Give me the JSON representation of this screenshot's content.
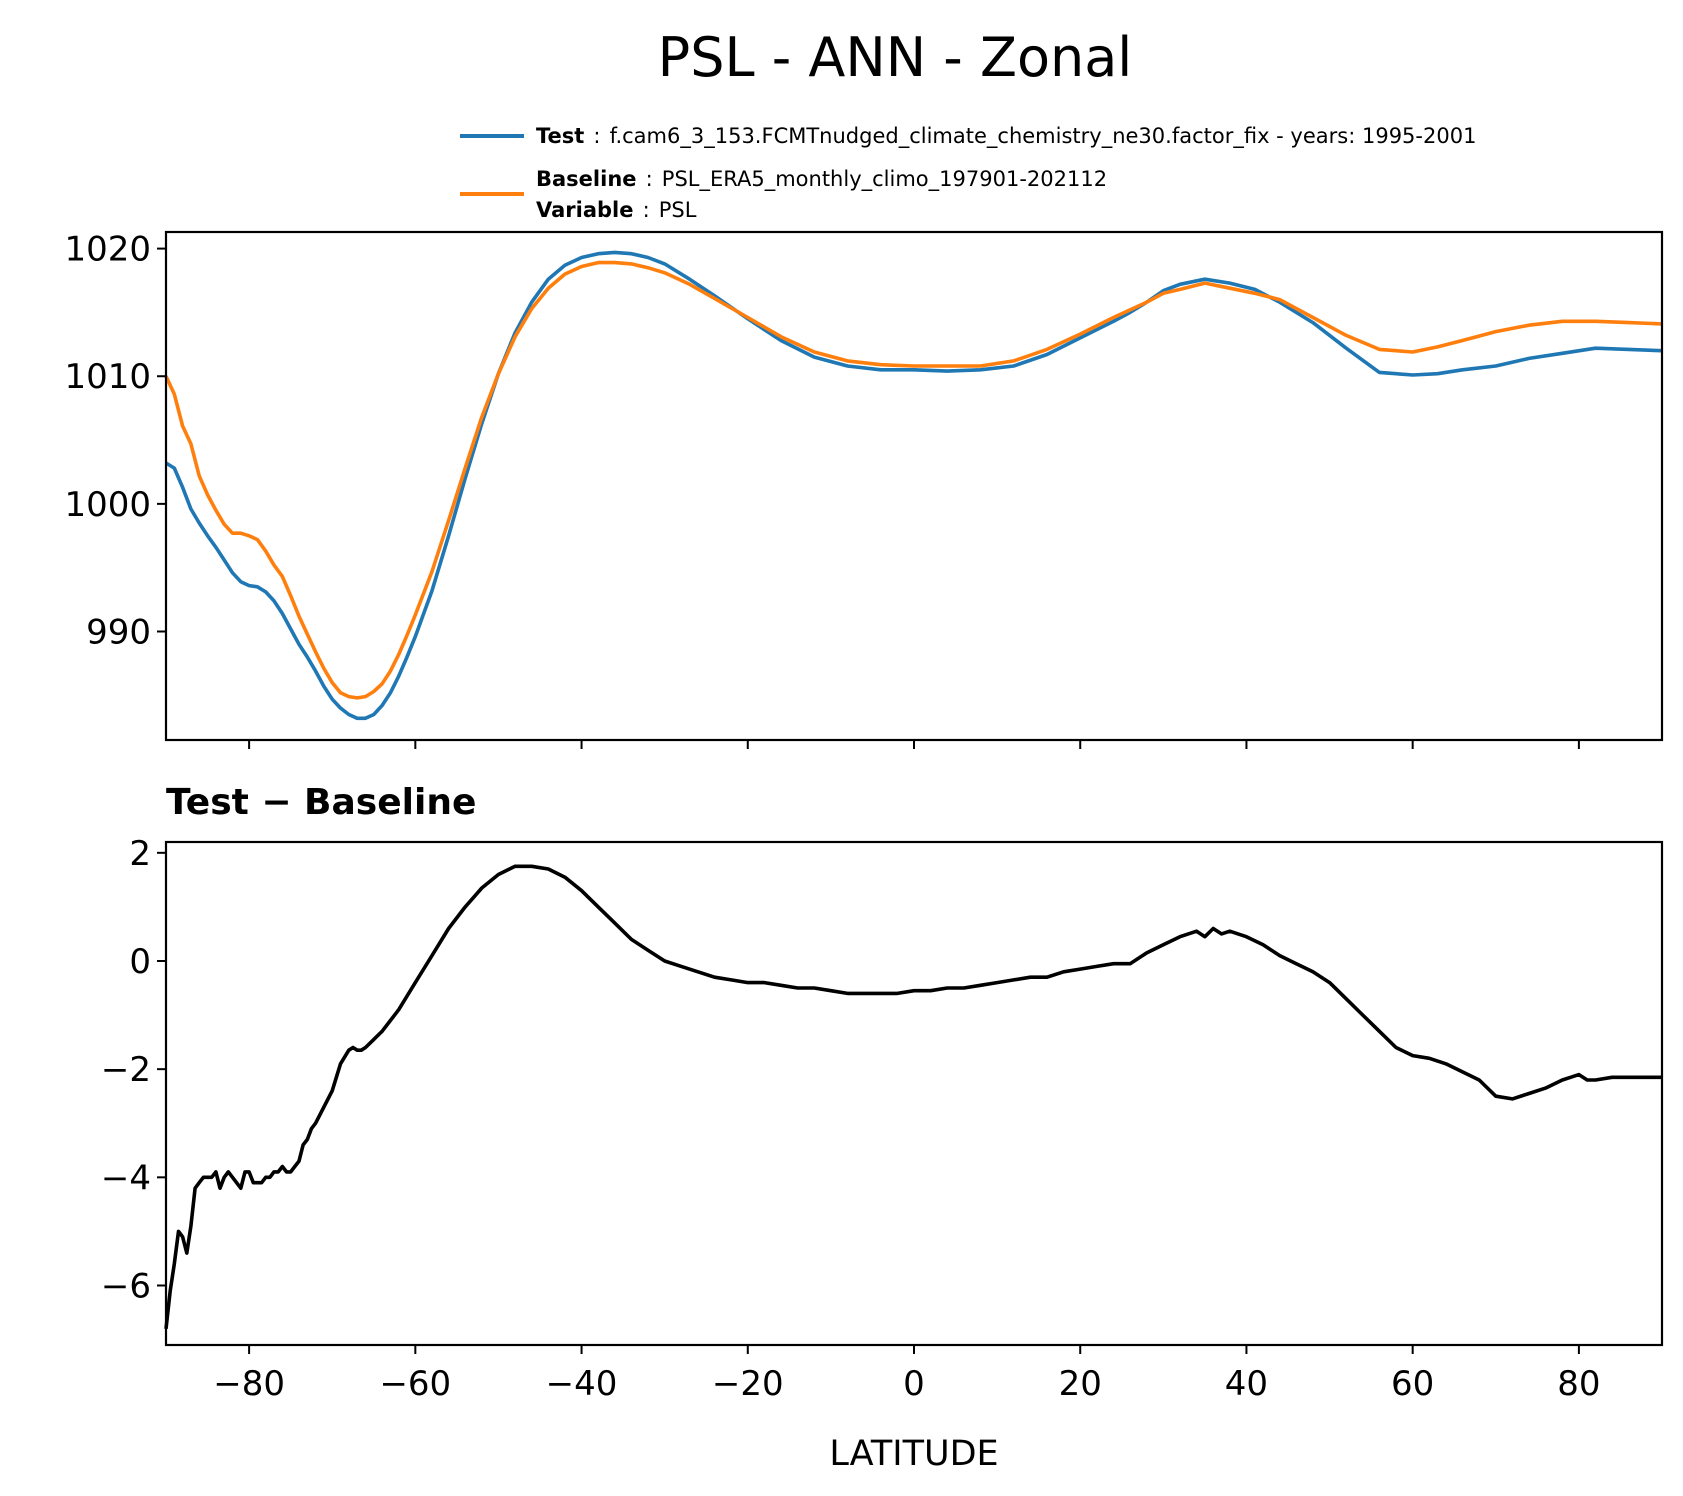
{
  "colors": {
    "test": "#1f77b4",
    "baseline": "#ff7f0e",
    "diff": "#000000",
    "axis": "#000000"
  },
  "chart_data": [
    {
      "type": "line",
      "title": "PSL - ANN - Zonal",
      "xlabel": "",
      "ylabel": "",
      "xlim": [
        -90,
        90
      ],
      "ylim": [
        981.5,
        1021.3
      ],
      "yticks": [
        990,
        1000,
        1010,
        1020
      ],
      "yticklabels": [
        "990",
        "1000",
        "1010",
        "1020"
      ],
      "xticks": [
        -80,
        -60,
        -40,
        -20,
        0,
        20,
        40,
        60,
        80
      ],
      "legend": {
        "placement": "top-right, above axes",
        "entries": [
          {
            "series": "Test",
            "lines": [
              {
                "key": "Test",
                "sep": ":",
                "value": "f.cam6_3_153.FCMTnudged_climate_chemistry_ne30.factor_fix - years: 1995-2001"
              }
            ]
          },
          {
            "series": "Baseline",
            "lines": [
              {
                "key": "Baseline",
                "sep": ":",
                "value": "PSL_ERA5_monthly_climo_197901-202112"
              },
              {
                "key": "Variable",
                "sep": ":",
                "value": "PSL"
              }
            ]
          }
        ]
      },
      "series": [
        {
          "name": "Test",
          "color": "#1f77b4",
          "x": [
            -90,
            -89,
            -88,
            -87,
            -86,
            -85,
            -84,
            -83,
            -82,
            -81,
            -80,
            -79,
            -78,
            -77,
            -76,
            -75,
            -74,
            -73,
            -72,
            -71,
            -70,
            -69,
            -68,
            -67,
            -66,
            -65,
            -64,
            -63,
            -62,
            -61,
            -60,
            -58,
            -56,
            -54,
            -52,
            -50,
            -48,
            -46,
            -44,
            -42,
            -40,
            -38,
            -36,
            -34,
            -32,
            -30,
            -27,
            -24,
            -20,
            -16,
            -12,
            -8,
            -4,
            0,
            4,
            8,
            12,
            16,
            20,
            24,
            26,
            28,
            30,
            32,
            35,
            38,
            41,
            44,
            48,
            52,
            56,
            60,
            63,
            66,
            70,
            74,
            78,
            82,
            86,
            90
          ],
          "y": [
            1003.2,
            1002.8,
            1001.3,
            999.6,
            998.5,
            997.5,
            996.6,
            995.6,
            994.6,
            993.9,
            993.6,
            993.5,
            993.1,
            992.4,
            991.4,
            990.2,
            989.0,
            988.0,
            986.9,
            985.7,
            984.7,
            984.0,
            983.5,
            983.2,
            983.2,
            983.5,
            984.2,
            985.2,
            986.5,
            988.0,
            989.6,
            993.2,
            997.5,
            1002.0,
            1006.3,
            1010.2,
            1013.4,
            1015.8,
            1017.6,
            1018.7,
            1019.3,
            1019.6,
            1019.7,
            1019.6,
            1019.3,
            1018.8,
            1017.6,
            1016.3,
            1014.5,
            1012.8,
            1011.5,
            1010.8,
            1010.5,
            1010.5,
            1010.4,
            1010.5,
            1010.8,
            1011.7,
            1013.0,
            1014.3,
            1015.0,
            1015.8,
            1016.7,
            1017.2,
            1017.6,
            1017.3,
            1016.8,
            1015.8,
            1014.2,
            1012.2,
            1010.3,
            1010.1,
            1010.2,
            1010.5,
            1010.8,
            1011.4,
            1011.8,
            1012.2,
            1012.1,
            1012.0
          ]
        },
        {
          "name": "Baseline",
          "color": "#ff7f0e",
          "x": [
            -90,
            -89,
            -88,
            -87,
            -86,
            -85,
            -84,
            -83,
            -82,
            -81,
            -80,
            -79,
            -78,
            -77,
            -76,
            -75,
            -74,
            -73,
            -72,
            -71,
            -70,
            -69,
            -68,
            -67,
            -66,
            -65,
            -64,
            -63,
            -62,
            -61,
            -60,
            -58,
            -56,
            -54,
            -52,
            -50,
            -48,
            -46,
            -44,
            -42,
            -40,
            -38,
            -36,
            -34,
            -32,
            -30,
            -27,
            -24,
            -20,
            -16,
            -12,
            -8,
            -4,
            0,
            4,
            8,
            12,
            16,
            20,
            24,
            26,
            28,
            30,
            32,
            35,
            38,
            41,
            44,
            48,
            52,
            56,
            60,
            63,
            66,
            70,
            74,
            78,
            82,
            86,
            90
          ],
          "y": [
            1010.0,
            1008.6,
            1006.1,
            1004.7,
            1002.2,
            1000.7,
            999.5,
            998.4,
            997.7,
            997.7,
            997.5,
            997.2,
            996.3,
            995.2,
            994.3,
            992.8,
            991.2,
            989.8,
            988.4,
            987.1,
            986.0,
            985.2,
            984.9,
            984.8,
            984.9,
            985.3,
            985.9,
            986.9,
            988.2,
            989.7,
            991.3,
            994.7,
            998.7,
            1002.8,
            1006.8,
            1010.2,
            1013.1,
            1015.3,
            1016.9,
            1018.0,
            1018.6,
            1018.9,
            1018.9,
            1018.8,
            1018.5,
            1018.1,
            1017.2,
            1016.1,
            1014.6,
            1013.1,
            1011.9,
            1011.2,
            1010.9,
            1010.8,
            1010.8,
            1010.8,
            1011.2,
            1012.1,
            1013.3,
            1014.6,
            1015.2,
            1015.8,
            1016.5,
            1016.8,
            1017.3,
            1016.9,
            1016.5,
            1016.0,
            1014.6,
            1013.2,
            1012.1,
            1011.9,
            1012.3,
            1012.8,
            1013.5,
            1014.0,
            1014.3,
            1014.3,
            1014.2,
            1014.1
          ]
        }
      ]
    },
    {
      "type": "line",
      "title": "Test − Baseline",
      "xlabel": "LATITUDE",
      "ylabel": "",
      "xlim": [
        -90,
        90
      ],
      "ylim": [
        -7.1,
        2.2
      ],
      "yticks": [
        -6,
        -4,
        -2,
        0,
        2
      ],
      "yticklabels": [
        "−6",
        "−4",
        "−2",
        "0",
        "2"
      ],
      "xticks": [
        -80,
        -60,
        -40,
        -20,
        0,
        20,
        40,
        60,
        80
      ],
      "xticklabels": [
        "−80",
        "−60",
        "−40",
        "−20",
        "0",
        "20",
        "40",
        "60",
        "80"
      ],
      "series": [
        {
          "name": "Test − Baseline",
          "color": "#000000",
          "x": [
            -90,
            -89.5,
            -89,
            -88.5,
            -88,
            -87.5,
            -87,
            -86.5,
            -86,
            -85.5,
            -85,
            -84.5,
            -84,
            -83.5,
            -83,
            -82.5,
            -82,
            -81.5,
            -81,
            -80.5,
            -80,
            -79.5,
            -79,
            -78.5,
            -78,
            -77.5,
            -77,
            -76.5,
            -76,
            -75.5,
            -75,
            -74.5,
            -74,
            -73.5,
            -73,
            -72.5,
            -72,
            -71,
            -70,
            -69,
            -68,
            -67.5,
            -67,
            -66.5,
            -66,
            -65,
            -64,
            -63,
            -62,
            -60,
            -58,
            -56,
            -54,
            -52,
            -50,
            -48,
            -46,
            -44,
            -42,
            -40,
            -38,
            -36,
            -34,
            -32,
            -30,
            -28,
            -26,
            -24,
            -22,
            -20,
            -18,
            -16,
            -14,
            -12,
            -10,
            -8,
            -6,
            -4,
            -2,
            0,
            2,
            4,
            6,
            8,
            10,
            12,
            14,
            16,
            18,
            20,
            22,
            24,
            26,
            28,
            30,
            32,
            34,
            35,
            36,
            37,
            38,
            40,
            42,
            44,
            46,
            48,
            50,
            52,
            54,
            56,
            58,
            60,
            62,
            64,
            66,
            68,
            70,
            72,
            74,
            76,
            78,
            79,
            80,
            81,
            82,
            84,
            86,
            88,
            90
          ],
          "y": [
            -6.8,
            -6.1,
            -5.6,
            -5.0,
            -5.1,
            -5.4,
            -4.9,
            -4.2,
            -4.1,
            -4.0,
            -4.0,
            -4.0,
            -3.9,
            -4.2,
            -4.0,
            -3.9,
            -4.0,
            -4.1,
            -4.2,
            -3.9,
            -3.9,
            -4.1,
            -4.1,
            -4.1,
            -4.0,
            -4.0,
            -3.9,
            -3.9,
            -3.8,
            -3.9,
            -3.9,
            -3.8,
            -3.7,
            -3.4,
            -3.3,
            -3.1,
            -3.0,
            -2.7,
            -2.4,
            -1.9,
            -1.65,
            -1.6,
            -1.65,
            -1.65,
            -1.6,
            -1.45,
            -1.3,
            -1.1,
            -0.9,
            -0.4,
            0.1,
            0.6,
            1.0,
            1.35,
            1.6,
            1.75,
            1.75,
            1.7,
            1.55,
            1.3,
            1.0,
            0.7,
            0.4,
            0.2,
            0.0,
            -0.1,
            -0.2,
            -0.3,
            -0.35,
            -0.4,
            -0.4,
            -0.45,
            -0.5,
            -0.5,
            -0.55,
            -0.6,
            -0.6,
            -0.6,
            -0.6,
            -0.55,
            -0.55,
            -0.5,
            -0.5,
            -0.45,
            -0.4,
            -0.35,
            -0.3,
            -0.3,
            -0.2,
            -0.15,
            -0.1,
            -0.05,
            -0.05,
            0.15,
            0.3,
            0.45,
            0.55,
            0.45,
            0.6,
            0.5,
            0.55,
            0.45,
            0.3,
            0.1,
            -0.05,
            -0.2,
            -0.4,
            -0.7,
            -1.0,
            -1.3,
            -1.6,
            -1.75,
            -1.8,
            -1.9,
            -2.05,
            -2.2,
            -2.5,
            -2.55,
            -2.45,
            -2.35,
            -2.2,
            -2.15,
            -2.1,
            -2.2,
            -2.2,
            -2.15,
            -2.15,
            -2.15,
            -2.15
          ]
        }
      ]
    }
  ]
}
